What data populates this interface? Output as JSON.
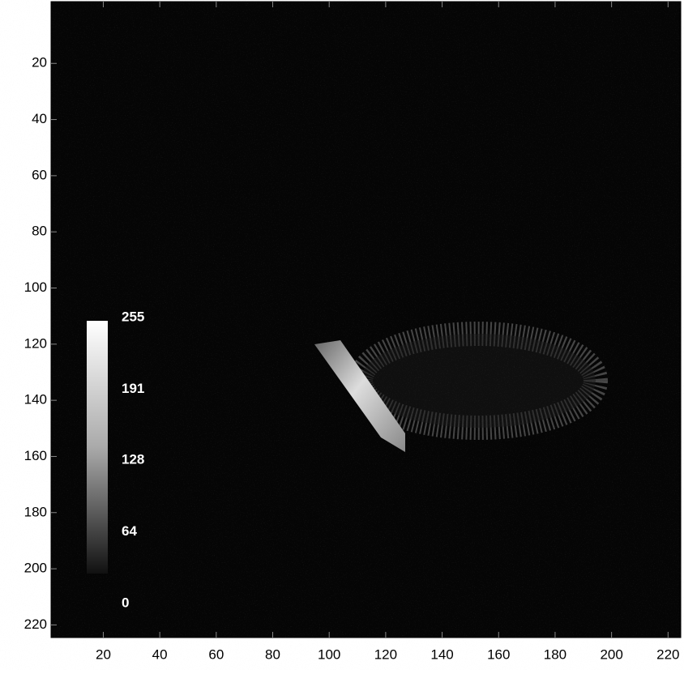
{
  "chart_data": {
    "type": "image",
    "xlim": [
      1.5,
      224.5
    ],
    "xticks": [
      20,
      40,
      60,
      80,
      100,
      120,
      140,
      160,
      180,
      200,
      220
    ],
    "ylim": [
      -2,
      224.5
    ],
    "yticks": [
      20,
      40,
      60,
      80,
      100,
      120,
      140,
      160,
      180,
      200,
      220
    ],
    "y_reversed": true,
    "colorbar": {
      "lim": [
        0,
        255
      ],
      "ticks": [
        0,
        64,
        128,
        191,
        255
      ]
    }
  }
}
